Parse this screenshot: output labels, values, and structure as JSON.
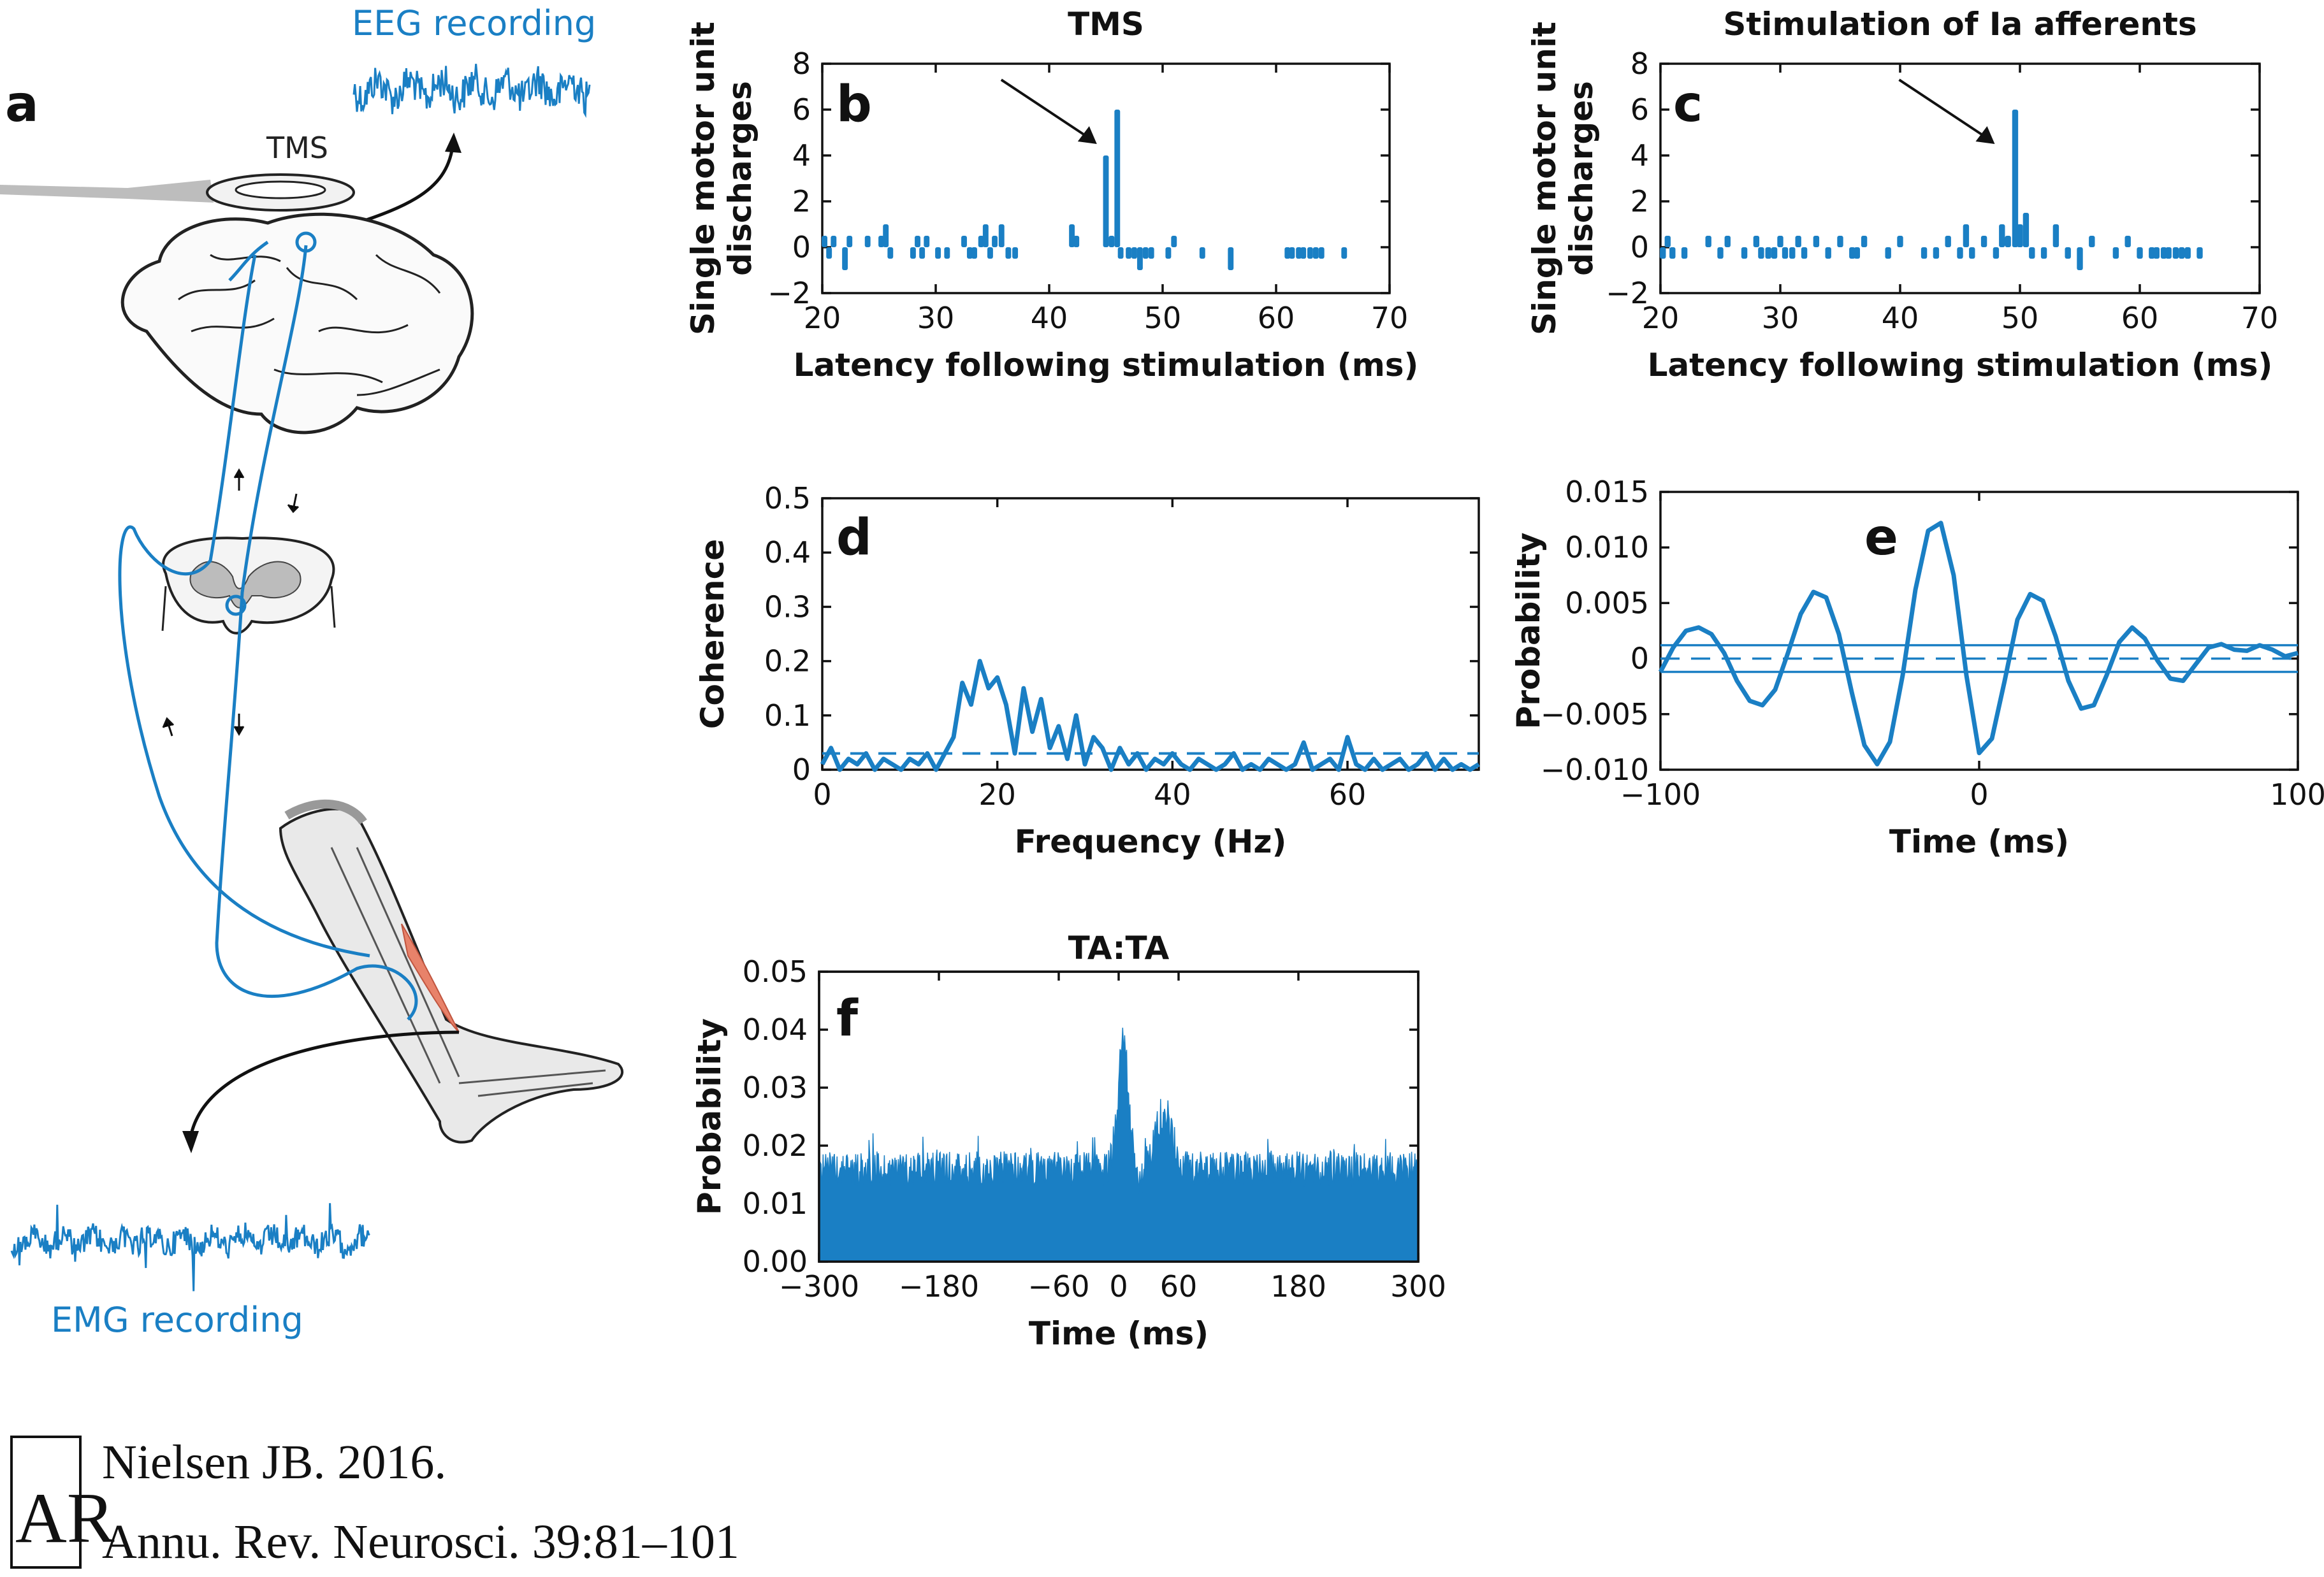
{
  "panel_a": {
    "letter": "a",
    "eeg_label": "EEG recording",
    "tms_label": "TMS",
    "emg_label": "EMG recording"
  },
  "citation": {
    "line1": "Nielsen JB. 2016.",
    "line2": "Annu. Rev. Neurosci. 39:81–101",
    "logo": "AR"
  },
  "colors": {
    "series": "#1a7fc4",
    "muscle": "#e8826a",
    "axis": "#111111"
  },
  "chart_data": [
    {
      "id": "b",
      "letter": "b",
      "type": "bar",
      "title": "TMS",
      "xlabel": "Latency following stimulation (ms)",
      "ylabel": "Single motor unit discharges",
      "xlim": [
        20,
        70
      ],
      "ylim": [
        -2,
        8
      ],
      "xticks": [
        20,
        30,
        40,
        50,
        60,
        70
      ],
      "yticks": [
        -2,
        0,
        2,
        4,
        6,
        8
      ],
      "bar_width_ms": 0.5,
      "annotation": "arrow pointing to peak at ~45 ms",
      "x": [
        20.2,
        20.6,
        21.0,
        22.0,
        22.4,
        24.0,
        25.2,
        25.6,
        26.0,
        28.0,
        28.4,
        28.8,
        29.2,
        30.2,
        31.0,
        32.5,
        33.0,
        33.4,
        34.0,
        34.4,
        34.8,
        35.2,
        35.8,
        36.4,
        37.0,
        42.0,
        42.4,
        45.0,
        45.5,
        46.0,
        46.3,
        47.0,
        47.5,
        48.0,
        48.5,
        49.0,
        50.5,
        51.0,
        53.5,
        56.0,
        61.0,
        61.4,
        62.0,
        62.4,
        63.0,
        63.5,
        64.0,
        66.0
      ],
      "values": [
        0.5,
        -0.5,
        0.5,
        -1,
        0.5,
        0.5,
        0.5,
        1,
        -0.5,
        -0.5,
        0.5,
        -0.5,
        0.5,
        -0.5,
        -0.5,
        0.5,
        -0.5,
        -0.5,
        0.5,
        1,
        -0.5,
        0.5,
        1,
        -0.5,
        -0.5,
        1,
        0.5,
        4,
        0.5,
        6,
        -0.5,
        -0.5,
        -0.5,
        -1,
        -0.5,
        -0.5,
        -0.5,
        0.5,
        -0.5,
        -1,
        -0.5,
        -0.5,
        -0.5,
        -0.5,
        -0.5,
        -0.5,
        -0.5,
        -0.5
      ]
    },
    {
      "id": "c",
      "letter": "c",
      "type": "bar",
      "title": "Stimulation of Ia afferents",
      "xlabel": "Latency following stimulation (ms)",
      "ylabel": "Single motor unit discharges",
      "xlim": [
        20,
        70
      ],
      "ylim": [
        -2,
        8
      ],
      "xticks": [
        20,
        30,
        40,
        50,
        60,
        70
      ],
      "yticks": [
        -2,
        0,
        2,
        4,
        6,
        8
      ],
      "bar_width_ms": 0.5,
      "annotation": "arrow pointing to peak at ~50 ms",
      "x": [
        20.2,
        20.6,
        21.0,
        22.0,
        24.0,
        25.0,
        25.6,
        27.0,
        28.0,
        28.4,
        29.0,
        29.5,
        30.0,
        30.4,
        31.0,
        31.5,
        32.0,
        33.0,
        34.0,
        35.0,
        36.0,
        36.4,
        37.0,
        39.0,
        40.0,
        42.0,
        43.0,
        44.0,
        45.0,
        45.5,
        46.0,
        47.0,
        48.0,
        48.5,
        49.0,
        49.6,
        50.0,
        50.5,
        51.0,
        52.0,
        53.0,
        54.0,
        55.0,
        56.0,
        58.0,
        59.0,
        60.0,
        61.0,
        61.4,
        62.0,
        62.4,
        63.0,
        63.5,
        64.0,
        65.0
      ],
      "values": [
        -0.5,
        0.5,
        -0.5,
        -0.5,
        0.5,
        -0.5,
        0.5,
        -0.5,
        0.5,
        -0.5,
        -0.5,
        -0.5,
        0.5,
        -0.5,
        -0.5,
        0.5,
        -0.5,
        0.5,
        -0.5,
        0.5,
        -0.5,
        -0.5,
        0.5,
        -0.5,
        0.5,
        -0.5,
        -0.5,
        0.5,
        -0.5,
        1,
        -0.5,
        0.5,
        -0.5,
        1,
        0.5,
        6,
        1,
        1.5,
        -0.5,
        -0.5,
        1,
        -0.5,
        -1,
        0.5,
        -0.5,
        0.5,
        -0.5,
        -0.5,
        -0.5,
        -0.5,
        -0.5,
        -0.5,
        -0.5,
        -0.5,
        -0.5
      ]
    },
    {
      "id": "d",
      "letter": "d",
      "type": "line",
      "title": "",
      "xlabel": "Frequency (Hz)",
      "ylabel": "Coherence",
      "xlim": [
        0,
        75
      ],
      "ylim": [
        0,
        0.5
      ],
      "xticks": [
        0,
        20,
        40,
        60
      ],
      "yticks": [
        0,
        0.1,
        0.2,
        0.3,
        0.4,
        0.5
      ],
      "x": [
        0,
        1,
        2,
        3,
        4,
        5,
        6,
        7,
        8,
        9,
        10,
        11,
        12,
        13,
        14,
        15,
        16,
        17,
        18,
        19,
        20,
        21,
        22,
        23,
        24,
        25,
        26,
        27,
        28,
        29,
        30,
        31,
        32,
        33,
        34,
        35,
        36,
        37,
        38,
        39,
        40,
        41,
        42,
        43,
        44,
        45,
        46,
        47,
        48,
        49,
        50,
        51,
        52,
        53,
        54,
        55,
        56,
        57,
        58,
        59,
        60,
        61,
        62,
        63,
        64,
        65,
        66,
        67,
        68,
        69,
        70,
        71,
        72,
        73,
        74,
        75
      ],
      "values": [
        0.01,
        0.04,
        0.0,
        0.02,
        0.01,
        0.03,
        0.0,
        0.02,
        0.01,
        0.0,
        0.02,
        0.01,
        0.03,
        0.0,
        0.03,
        0.06,
        0.16,
        0.12,
        0.2,
        0.15,
        0.17,
        0.12,
        0.03,
        0.15,
        0.07,
        0.13,
        0.04,
        0.08,
        0.02,
        0.1,
        0.01,
        0.06,
        0.04,
        0.0,
        0.04,
        0.01,
        0.03,
        0.0,
        0.02,
        0.01,
        0.03,
        0.01,
        0.0,
        0.02,
        0.01,
        0.0,
        0.01,
        0.03,
        0.0,
        0.01,
        0.0,
        0.02,
        0.01,
        0.0,
        0.01,
        0.05,
        0.0,
        0.01,
        0.02,
        0.0,
        0.06,
        0.01,
        0.0,
        0.02,
        0.0,
        0.01,
        0.02,
        0.0,
        0.01,
        0.03,
        0.0,
        0.02,
        0.0,
        0.01,
        0.0,
        0.01
      ],
      "threshold": 0.03,
      "threshold_style": "dashed"
    },
    {
      "id": "e",
      "letter": "e",
      "type": "line",
      "title": "",
      "xlabel": "Time (ms)",
      "ylabel": "Probability",
      "xlim": [
        -100,
        100
      ],
      "ylim": [
        -0.01,
        0.015
      ],
      "xticks": [
        -100,
        0,
        100
      ],
      "xtick_labels": [
        "−100",
        "0",
        "100"
      ],
      "yticks": [
        -0.01,
        -0.005,
        0,
        0.005,
        0.01,
        0.015
      ],
      "ytick_labels": [
        "−0.010",
        "−0.005",
        "0",
        "0.005",
        "0.010",
        "0.015"
      ],
      "x": [
        -100,
        -96,
        -92,
        -88,
        -84,
        -80,
        -76,
        -72,
        -68,
        -64,
        -60,
        -56,
        -52,
        -48,
        -44,
        -40,
        -36,
        -32,
        -28,
        -24,
        -20,
        -16,
        -12,
        -8,
        -4,
        0,
        4,
        8,
        12,
        16,
        20,
        24,
        28,
        32,
        36,
        40,
        44,
        48,
        52,
        56,
        60,
        64,
        68,
        72,
        76,
        80,
        84,
        88,
        92,
        96,
        100
      ],
      "values": [
        -0.0012,
        0.001,
        0.0025,
        0.0028,
        0.0022,
        0.0005,
        -0.002,
        -0.0038,
        -0.0042,
        -0.0028,
        0.0005,
        0.004,
        0.006,
        0.0055,
        0.0022,
        -0.003,
        -0.0078,
        -0.0095,
        -0.0075,
        -0.0015,
        0.0062,
        0.0115,
        0.0122,
        0.0075,
        -0.0015,
        -0.0085,
        -0.0072,
        -0.002,
        0.0035,
        0.0058,
        0.0052,
        0.002,
        -0.002,
        -0.0045,
        -0.0042,
        -0.0015,
        0.0015,
        0.0028,
        0.0018,
        -0.0002,
        -0.0018,
        -0.002,
        -0.0005,
        0.001,
        0.0013,
        0.0008,
        0.0007,
        0.0012,
        0.0008,
        0.0002,
        0.0005
      ],
      "bands": [
        0.0012,
        0,
        -0.0012
      ],
      "band_styles": [
        "solid",
        "dashed",
        "solid"
      ]
    },
    {
      "id": "f",
      "letter": "f",
      "type": "area",
      "title": "TA:TA",
      "xlabel": "Time (ms)",
      "ylabel": "Probability",
      "xlim": [
        -300,
        300
      ],
      "ylim": [
        0,
        0.05
      ],
      "xticks": [
        -300,
        -180,
        -60,
        0,
        60,
        180,
        300
      ],
      "xtick_labels": [
        "−300",
        "−180",
        "−60",
        "0",
        "60",
        "180",
        "300"
      ],
      "yticks": [
        0,
        0.01,
        0.02,
        0.03,
        0.04,
        0.05
      ],
      "ytick_labels": [
        "0.00",
        "0.01",
        "0.02",
        "0.03",
        "0.04",
        "0.05"
      ],
      "baseline": 0.016,
      "noise": 0.003,
      "peaks": [
        {
          "x": 5,
          "y": 0.039,
          "width": 8
        },
        {
          "x": 45,
          "y": 0.026,
          "width": 12
        }
      ]
    }
  ]
}
